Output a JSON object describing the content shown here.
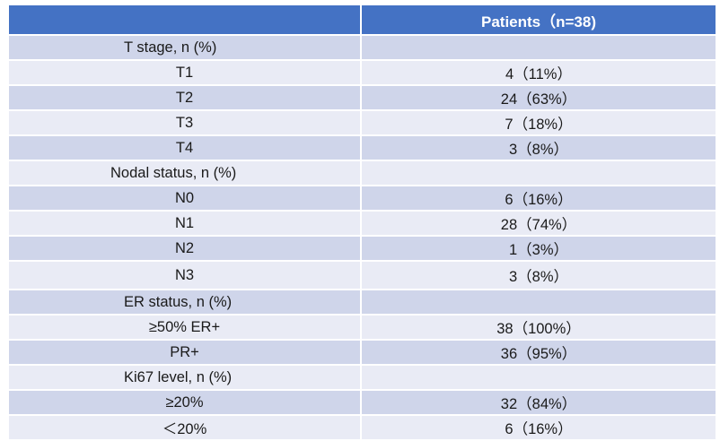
{
  "table": {
    "header": [
      "",
      "Patients（n=38)"
    ],
    "rows": [
      {
        "label": "T stage, n (%)",
        "value": "",
        "section": true,
        "indent": 128
      },
      {
        "label": "T1",
        "value": "4（11%）"
      },
      {
        "label": "T2",
        "value": "24（63%）"
      },
      {
        "label": "T3",
        "value": "7（18%）"
      },
      {
        "label": "T4",
        "value": "3（8%）"
      },
      {
        "label": "Nodal status, n (%)",
        "value": "",
        "section": true,
        "indent": 113
      },
      {
        "label": "N0",
        "value": "6（16%）"
      },
      {
        "label": "N1",
        "value": "28（74%）"
      },
      {
        "label": "N2",
        "value": "1（3%）"
      },
      {
        "label": "N3",
        "value": "3（8%）",
        "tall": true
      },
      {
        "label": "ER status, n (%)",
        "value": "",
        "section": true,
        "indent": 128
      },
      {
        "label": "≥50% ER+",
        "value": "38（100%）"
      },
      {
        "label": "PR+",
        "value": "36（95%）"
      },
      {
        "label": "Ki67 level, n (%)",
        "value": "",
        "section": true,
        "indent": 128
      },
      {
        "label": "≥20%",
        "value": "32（84%）"
      },
      {
        "label": "＜20%",
        "value": "6（16%）"
      }
    ]
  },
  "colors": {
    "header": "#4472c4",
    "row_dark": "#cfd5ea",
    "row_light": "#e9ebf5"
  }
}
